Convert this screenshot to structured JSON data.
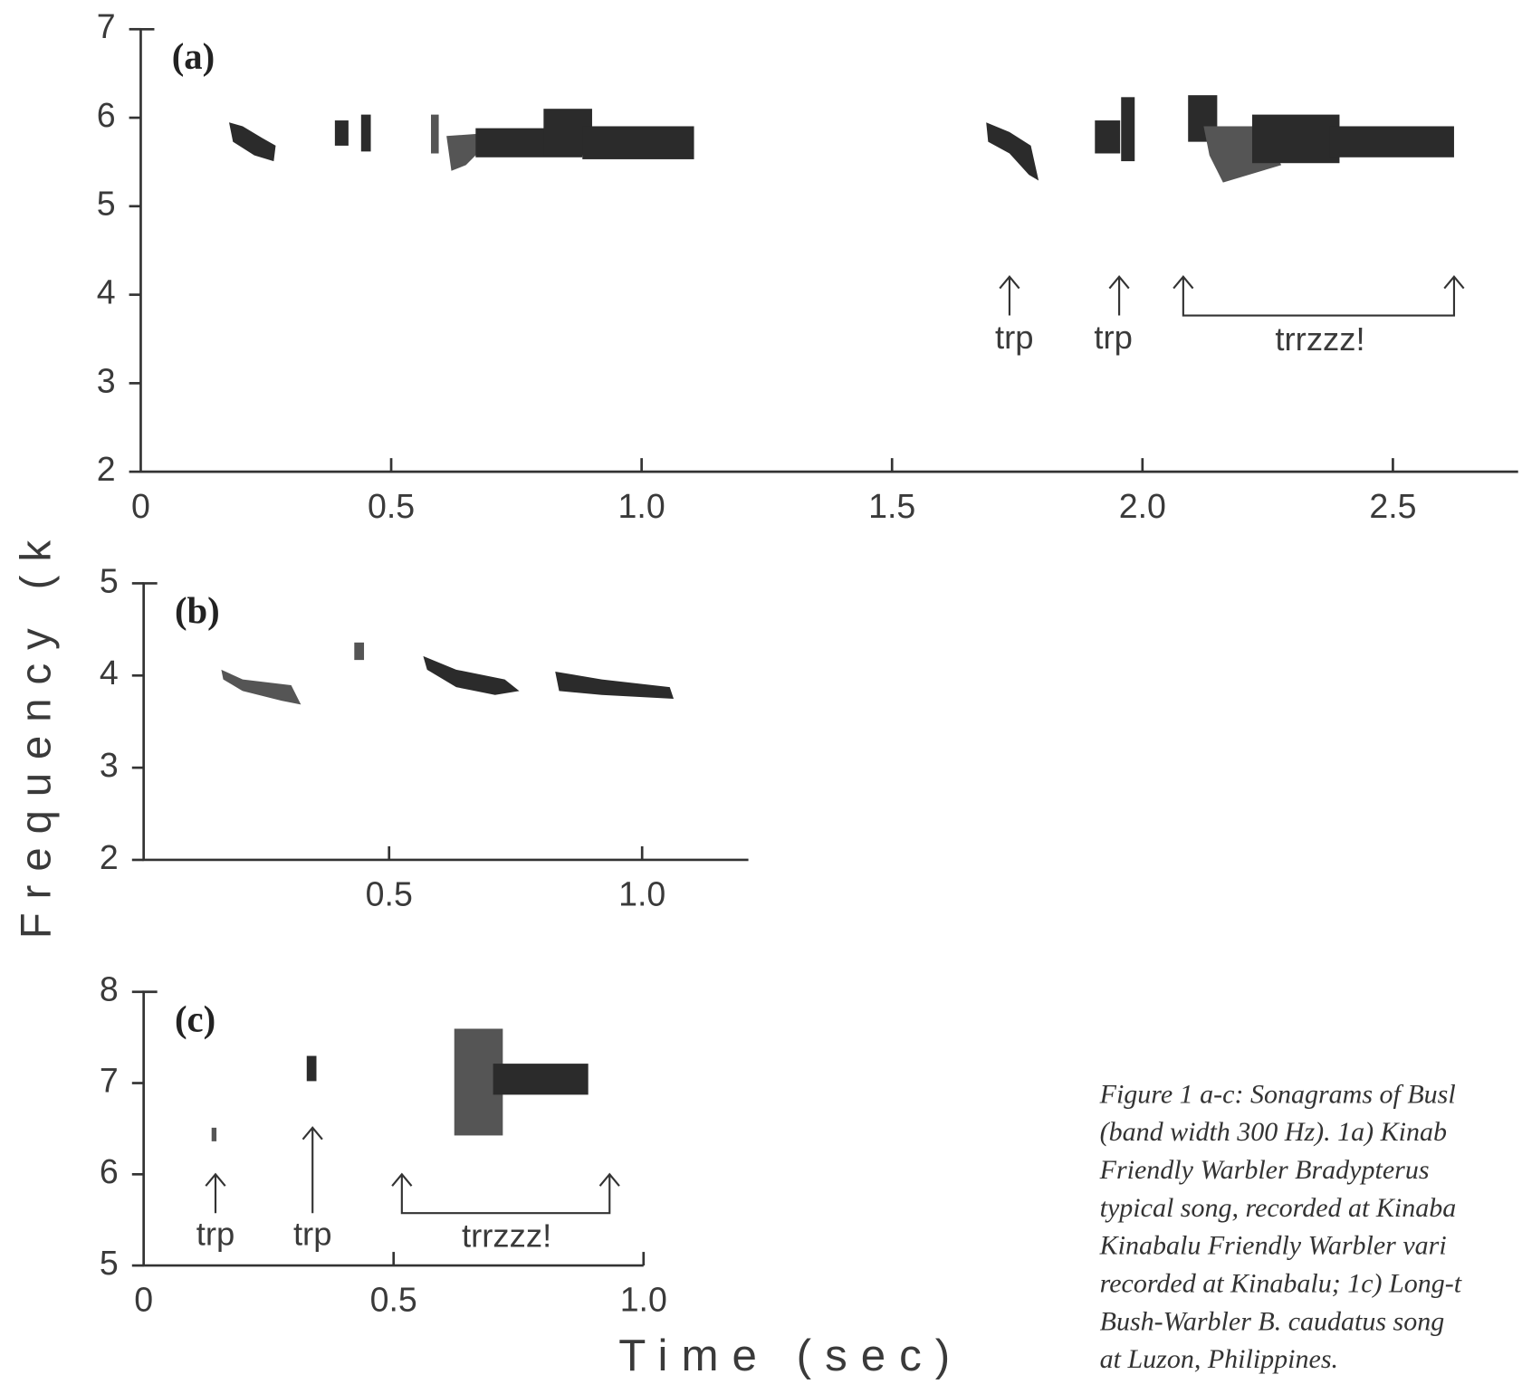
{
  "chart_data": [
    {
      "type": "spectrogram",
      "panel_label": "(a)",
      "xlim": [
        0,
        2.75
      ],
      "ylim": [
        2,
        7
      ],
      "xticks": [
        0,
        0.5,
        {
          "value": 1,
          "label": "1.0"
        },
        1.5,
        {
          "value": 2,
          "label": "2.0"
        },
        2.5
      ],
      "yticks": [
        2,
        3,
        4,
        5,
        6,
        7
      ],
      "annotations": [
        "trp",
        "trp",
        "trrzzz!"
      ]
    },
    {
      "type": "spectrogram",
      "panel_label": "(b)",
      "xlim": [
        0.015,
        1.21
      ],
      "ylim": [
        2,
        5
      ],
      "xticks": [
        0.5,
        {
          "value": 1,
          "label": "1.0"
        }
      ],
      "yticks": [
        2,
        3,
        4,
        5
      ]
    },
    {
      "type": "spectrogram",
      "panel_label": "(c)",
      "xlim": [
        0,
        1
      ],
      "ylim": [
        5,
        8
      ],
      "xticks": [
        0,
        0.5,
        {
          "value": 1,
          "label": "1.0"
        }
      ],
      "yticks": [
        5,
        6,
        7,
        8
      ],
      "annotations": [
        "trp",
        "trp",
        "trrzzz!"
      ]
    }
  ],
  "y_label": "Frequency (k",
  "x_label": "Time (sec)",
  "caption": [
    "Figure 1 a-c: Sonagrams of Busl",
    "(band width 300 Hz). 1a) Kinab",
    "Friendly Warbler Bradypterus",
    "typical song, recorded at Kinaba",
    "Kinabalu Friendly Warbler vari",
    "recorded at Kinabalu; 1c) Long-t",
    "Bush-Warbler B. caudatus song",
    "at Luzon, Philippines."
  ]
}
